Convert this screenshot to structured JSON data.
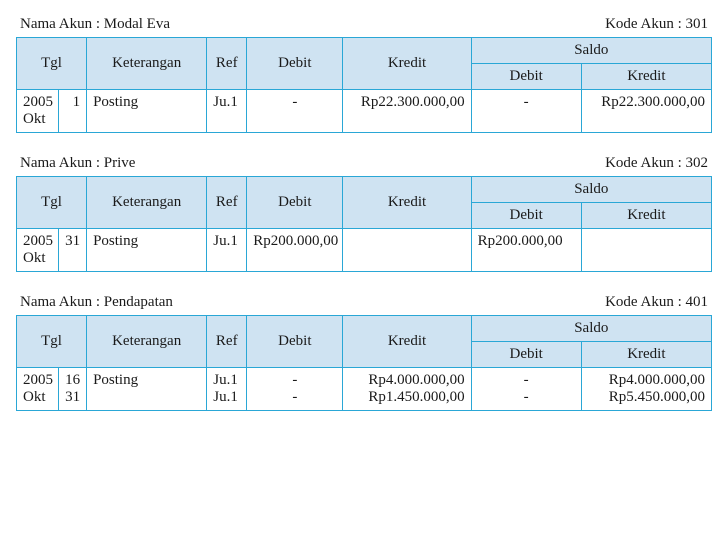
{
  "labels": {
    "nama_akun": "Nama Akun",
    "kode_akun": "Kode Akun",
    "tgl": "Tgl",
    "keterangan": "Keterangan",
    "ref": "Ref",
    "debit": "Debit",
    "kredit": "Kredit",
    "saldo": "Saldo"
  },
  "colors": {
    "border": "#2aa7d6",
    "header_bg": "#cfe3f2",
    "text": "#1a1a1a",
    "background": "#ffffff"
  },
  "accounts": [
    {
      "name": "Modal Eva",
      "code": "301",
      "rows": [
        {
          "tgl_a": "2005\nOkt",
          "tgl_b": "1",
          "ket": "Posting",
          "ref": "Ju.1",
          "debit": "-",
          "kredit": "Rp22.300.000,00",
          "saldo_debit": "-",
          "saldo_kredit": "Rp22.300.000,00"
        }
      ]
    },
    {
      "name": "Prive",
      "code": "302",
      "rows": [
        {
          "tgl_a": "2005\nOkt",
          "tgl_b": "31",
          "ket": "Posting",
          "ref": "Ju.1",
          "debit": "Rp200.000,00",
          "kredit": "",
          "saldo_debit": "Rp200.000,00",
          "saldo_kredit": ""
        }
      ]
    },
    {
      "name": "Pendapatan",
      "code": "401",
      "rows": [
        {
          "tgl_a": "2005\nOkt",
          "tgl_b": "16\n31",
          "ket": "Posting",
          "ref": "Ju.1\nJu.1",
          "debit": "-\n-",
          "kredit": "Rp4.000.000,00\nRp1.450.000,00",
          "saldo_debit": "-\n-",
          "saldo_kredit": "Rp4.000.000,00\nRp5.450.000,00"
        }
      ]
    }
  ]
}
